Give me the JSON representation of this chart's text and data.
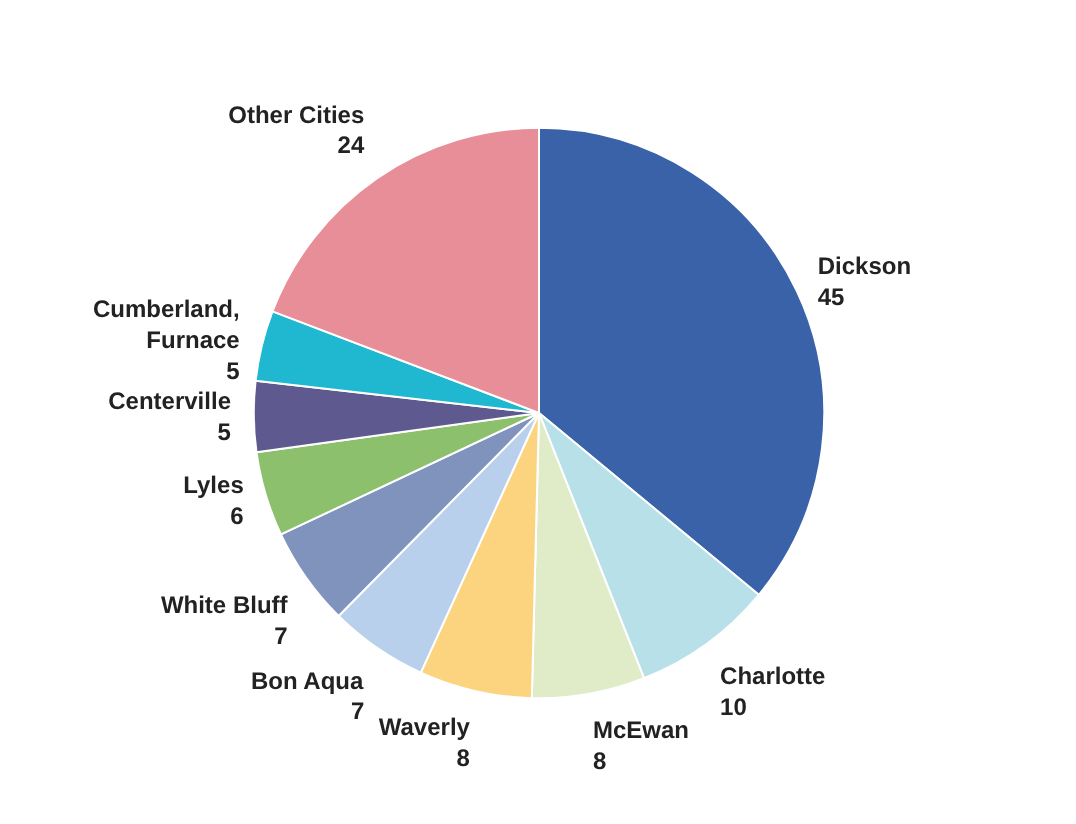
{
  "chart_data": {
    "type": "pie",
    "categories": [
      "Dickson",
      "Charlotte",
      "McEwan",
      "Waverly",
      "Bon Aqua",
      "White Bluff",
      "Lyles",
      "Centerville",
      "Cumberland, Furnace",
      "Other Cities"
    ],
    "values": [
      45,
      10,
      8,
      8,
      7,
      7,
      6,
      5,
      5,
      24
    ],
    "colors": [
      "#3a62a8",
      "#b8e0e8",
      "#e0ecc8",
      "#fcd480",
      "#b8d0ec",
      "#7f93bd",
      "#8cc06c",
      "#5e5a90",
      "#20b8d0",
      "#e88e98"
    ],
    "data_labels": true
  }
}
